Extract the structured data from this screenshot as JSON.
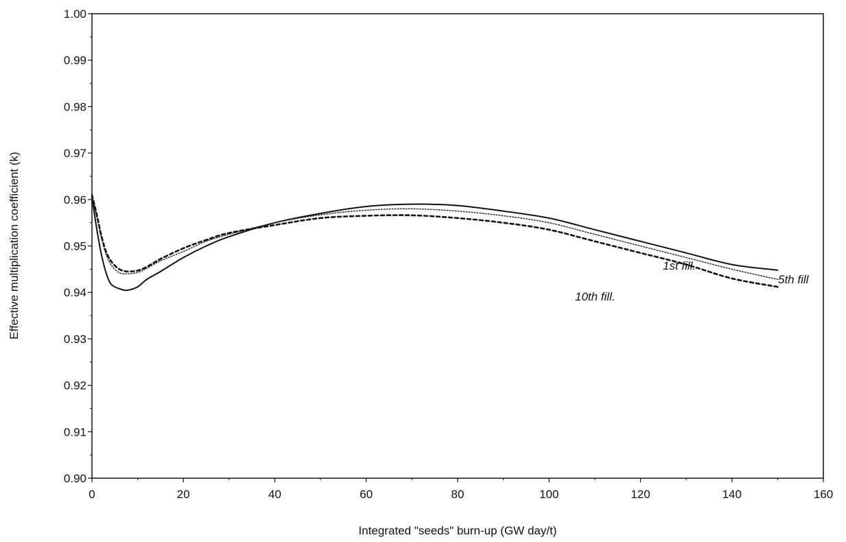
{
  "chart_data": {
    "type": "line",
    "title": "",
    "xlabel": "Integrated \"seeds\" burn-up (GW day/t)",
    "ylabel": "Effective multiplication coefficient (k)",
    "xlim": [
      0,
      160
    ],
    "ylim": [
      0.9,
      1.0
    ],
    "x_ticks": [
      "0",
      "20",
      "40",
      "60",
      "80",
      "100",
      "120",
      "140",
      "160"
    ],
    "y_ticks": [
      "0.90",
      "0.91",
      "0.92",
      "0.93",
      "0.94",
      "0.95",
      "0.96",
      "0.97",
      "0.98",
      "0.99",
      "1.00"
    ],
    "grid": false,
    "legend": "none",
    "series": [
      {
        "name": "1st fill.",
        "style": "solid",
        "color": "#111111",
        "x": [
          0,
          1,
          2,
          3,
          4,
          5,
          6,
          7,
          8,
          10,
          12,
          15,
          20,
          25,
          30,
          40,
          50,
          60,
          70,
          80,
          90,
          100,
          110,
          120,
          130,
          140,
          150
        ],
        "y": [
          0.9605,
          0.954,
          0.9485,
          0.9445,
          0.942,
          0.9412,
          0.9408,
          0.9405,
          0.9405,
          0.9412,
          0.9428,
          0.9445,
          0.9475,
          0.95,
          0.952,
          0.955,
          0.957,
          0.9585,
          0.959,
          0.9587,
          0.9575,
          0.956,
          0.9535,
          0.951,
          0.9485,
          0.946,
          0.9448
        ]
      },
      {
        "name": "5th fill",
        "style": "dotted",
        "color": "#333333",
        "x": [
          0,
          1,
          2,
          3,
          4,
          5,
          6,
          7,
          8,
          10,
          12,
          15,
          20,
          25,
          30,
          40,
          50,
          60,
          70,
          80,
          90,
          100,
          110,
          120,
          130,
          140,
          150
        ],
        "y": [
          0.961,
          0.9565,
          0.952,
          0.9485,
          0.9462,
          0.945,
          0.9442,
          0.944,
          0.944,
          0.9443,
          0.9452,
          0.9468,
          0.9488,
          0.951,
          0.9525,
          0.955,
          0.9567,
          0.9577,
          0.958,
          0.9575,
          0.9565,
          0.955,
          0.9525,
          0.95,
          0.9475,
          0.945,
          0.9428
        ]
      },
      {
        "name": "10th fill.",
        "style": "dashed",
        "color": "#111111",
        "x": [
          0,
          1,
          2,
          3,
          4,
          5,
          6,
          7,
          8,
          10,
          12,
          15,
          20,
          25,
          30,
          40,
          50,
          60,
          70,
          80,
          90,
          100,
          110,
          120,
          130,
          140,
          150
        ],
        "y": [
          0.961,
          0.957,
          0.9525,
          0.949,
          0.947,
          0.9458,
          0.945,
          0.9446,
          0.9445,
          0.9447,
          0.9455,
          0.9472,
          0.9495,
          0.9513,
          0.9528,
          0.9545,
          0.956,
          0.9565,
          0.9566,
          0.956,
          0.955,
          0.9535,
          0.951,
          0.9485,
          0.946,
          0.943,
          0.9412
        ]
      }
    ]
  }
}
